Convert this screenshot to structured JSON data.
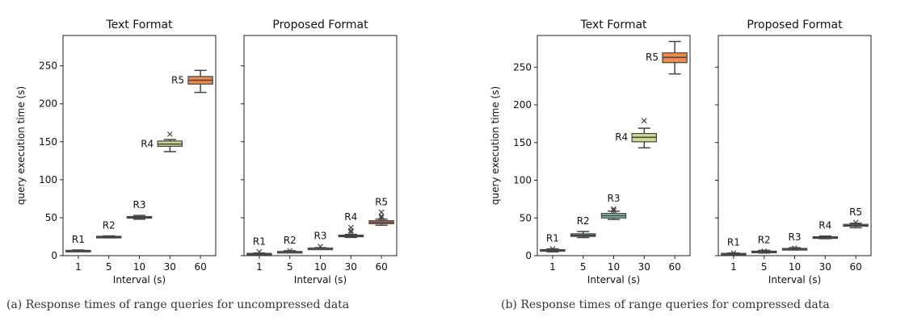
{
  "captions": [
    "(a) Response times of range queries for uncompressed data",
    "(b) Response times of range queries for compressed data"
  ],
  "chart_data": [
    {
      "type": "box",
      "title": "Text Format",
      "xlabel": "Interval (s)",
      "ylabel": "query execution time (s)",
      "categories": [
        "1",
        "5",
        "10",
        "30",
        "60"
      ],
      "ylim": [
        0,
        290
      ],
      "yticks": [
        0,
        50,
        100,
        150,
        200,
        250
      ],
      "boxes": [
        {
          "label": "R1",
          "min": 5.5,
          "q1": 6,
          "median": 6.5,
          "q3": 7,
          "max": 7.5,
          "outliers": [],
          "color": "#4e6e8a"
        },
        {
          "label": "R2",
          "min": 23.5,
          "q1": 24,
          "median": 24.5,
          "q3": 25.5,
          "max": 26,
          "outliers": [],
          "color": "#6aa6b0"
        },
        {
          "label": "R3",
          "min": 48,
          "q1": 49.5,
          "median": 50.5,
          "q3": 51.5,
          "max": 53,
          "outliers": [],
          "color": "#8ac4b8"
        },
        {
          "label": "R4",
          "min": 137,
          "q1": 144,
          "median": 147,
          "q3": 151,
          "max": 153,
          "outliers": [
            160
          ],
          "color": "#cad98e"
        },
        {
          "label": "R5",
          "min": 215,
          "q1": 226,
          "median": 231,
          "q3": 236,
          "max": 244,
          "outliers": [],
          "color": "#f08a4b"
        }
      ]
    },
    {
      "type": "box",
      "title": "Proposed Format",
      "xlabel": "Interval (s)",
      "ylabel": "",
      "categories": [
        "1",
        "5",
        "10",
        "30",
        "60"
      ],
      "ylim": [
        0,
        290
      ],
      "yticks": [
        0,
        50,
        100,
        150,
        200,
        250
      ],
      "boxes": [
        {
          "label": "R1",
          "min": 1.5,
          "q1": 2,
          "median": 2.5,
          "q3": 3,
          "max": 3.5,
          "outliers": [
            5
          ],
          "color": "#4e6e8a"
        },
        {
          "label": "R2",
          "min": 4,
          "q1": 4.5,
          "median": 5,
          "q3": 5.5,
          "max": 6.5,
          "outliers": [
            6.5
          ],
          "color": "#6aa6b0"
        },
        {
          "label": "R3",
          "min": 8.5,
          "q1": 9,
          "median": 9.5,
          "q3": 10,
          "max": 10.5,
          "outliers": [
            12
          ],
          "color": "#8ac4b8"
        },
        {
          "label": "R4",
          "min": 24,
          "q1": 25,
          "median": 26,
          "q3": 27,
          "max": 28,
          "outliers": [
            31,
            33,
            37
          ],
          "color": "#cad98e"
        },
        {
          "label": "R5",
          "min": 40,
          "q1": 42,
          "median": 44,
          "q3": 46,
          "max": 48,
          "outliers": [
            50,
            52,
            57
          ],
          "color": "#f08a4b"
        }
      ]
    },
    {
      "type": "box",
      "title": "Text Format",
      "xlabel": "Interval (s)",
      "ylabel": "query execution time (s)",
      "categories": [
        "1",
        "5",
        "10",
        "30",
        "60"
      ],
      "ylim": [
        0,
        292
      ],
      "yticks": [
        0,
        50,
        100,
        150,
        200,
        250
      ],
      "boxes": [
        {
          "label": "R1",
          "min": 5,
          "q1": 6,
          "median": 7,
          "q3": 8,
          "max": 9,
          "outliers": [
            9
          ],
          "color": "#4e6e8a"
        },
        {
          "label": "R2",
          "min": 24,
          "q1": 25.5,
          "median": 27,
          "q3": 29,
          "max": 32,
          "outliers": [],
          "color": "#6aa6b0"
        },
        {
          "label": "R3",
          "min": 48,
          "q1": 50,
          "median": 53,
          "q3": 56,
          "max": 59,
          "outliers": [
            62,
            60
          ],
          "color": "#8ac4b8"
        },
        {
          "label": "R4",
          "min": 143,
          "q1": 151,
          "median": 157,
          "q3": 162,
          "max": 169,
          "outliers": [
            179
          ],
          "color": "#cad98e"
        },
        {
          "label": "R5",
          "min": 241,
          "q1": 256,
          "median": 263,
          "q3": 269,
          "max": 284,
          "outliers": [],
          "color": "#f08a4b"
        }
      ]
    },
    {
      "type": "box",
      "title": "Proposed Format",
      "xlabel": "Interval (s)",
      "ylabel": "",
      "categories": [
        "1",
        "5",
        "10",
        "30",
        "60"
      ],
      "ylim": [
        0,
        292
      ],
      "yticks": [
        0,
        50,
        100,
        150,
        200,
        250
      ],
      "boxes": [
        {
          "label": "R1",
          "min": 1.5,
          "q1": 2,
          "median": 2.5,
          "q3": 3,
          "max": 3.5,
          "outliers": [
            3.5
          ],
          "color": "#4e6e8a"
        },
        {
          "label": "R2",
          "min": 3.5,
          "q1": 4.5,
          "median": 5,
          "q3": 6,
          "max": 7,
          "outliers": [
            6
          ],
          "color": "#6aa6b0"
        },
        {
          "label": "R3",
          "min": 8,
          "q1": 8.5,
          "median": 9,
          "q3": 9.5,
          "max": 10.5,
          "outliers": [
            10
          ],
          "color": "#8ac4b8"
        },
        {
          "label": "R4",
          "min": 22.5,
          "q1": 23.5,
          "median": 24,
          "q3": 25,
          "max": 26,
          "outliers": [],
          "color": "#cad98e"
        },
        {
          "label": "R5",
          "min": 37,
          "q1": 39,
          "median": 40,
          "q3": 41.5,
          "max": 43,
          "outliers": [
            44
          ],
          "color": "#f08a4b"
        }
      ]
    }
  ]
}
